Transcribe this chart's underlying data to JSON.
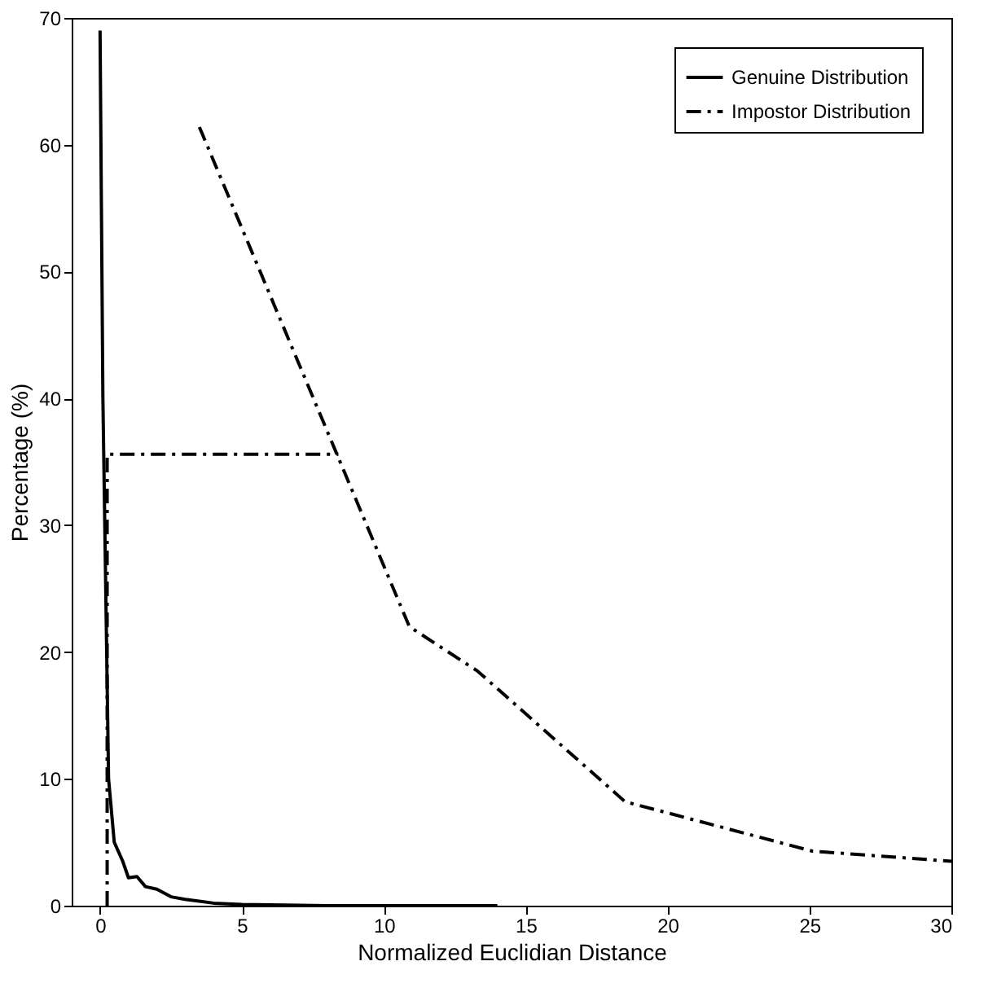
{
  "chart_data": {
    "type": "line",
    "xlabel": "Normalized Euclidian Distance",
    "ylabel": "Percentage (%)",
    "xlim": [
      -1,
      30
    ],
    "xticks": [
      0,
      5,
      10,
      15,
      20,
      25,
      30
    ],
    "ylim": [
      0,
      70
    ],
    "yticks": [
      0,
      10,
      20,
      30,
      40,
      50,
      60,
      70
    ],
    "grid": false,
    "legend": "top right",
    "marker": "none",
    "series": [
      {
        "name": "Genuine Distribution",
        "color": "#000000",
        "line_style": "solid",
        "x": [
          0,
          0.1,
          0.3,
          0.5,
          0.8,
          1,
          1.3,
          1.6,
          2,
          2.5,
          3,
          4,
          5,
          8,
          14
        ],
        "values": [
          69,
          40,
          10,
          5,
          3.5,
          2.2,
          2.3,
          1.5,
          1.3,
          0.7,
          0.5,
          0.2,
          0.1,
          0,
          0
        ]
      },
      {
        "name": "Impostor Distribution",
        "color": "#000000",
        "line_style": "dashdot",
        "x": [
          0.25,
          0.25,
          8.4,
          6,
          3.5,
          10.9,
          13.3,
          18.5,
          25.1,
          30
        ],
        "values": [
          0,
          35.6,
          35.6,
          null,
          61.4,
          22,
          18.5,
          8.2,
          4.3,
          3.5
        ]
      }
    ]
  }
}
